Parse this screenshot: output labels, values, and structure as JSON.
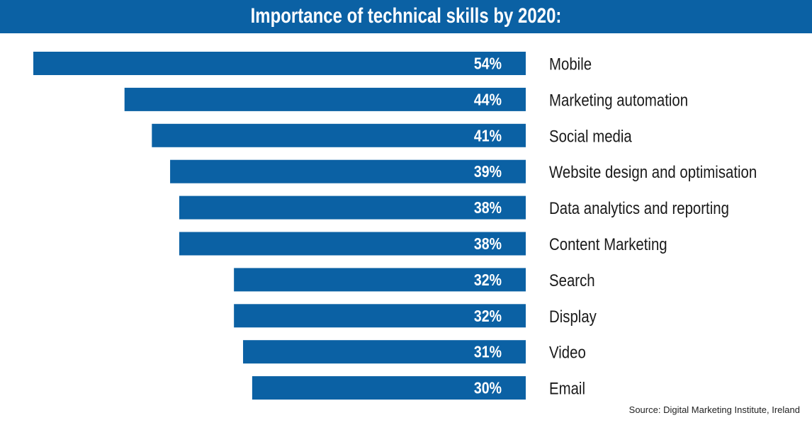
{
  "chart_data": {
    "type": "bar",
    "orientation": "horizontal",
    "title": "Importance of technical skills by 2020:",
    "categories": [
      "Mobile",
      "Marketing automation",
      "Social media",
      "Website design and optimisation",
      "Data analytics and reporting",
      "Content Marketing",
      "Search",
      "Display",
      "Video",
      "Email"
    ],
    "values": [
      54,
      44,
      41,
      39,
      38,
      38,
      32,
      32,
      31,
      30
    ],
    "value_labels": [
      "54%",
      "44%",
      "41%",
      "39%",
      "38%",
      "38%",
      "32%",
      "32%",
      "31%",
      "30%"
    ],
    "bar_color": "#0b61a4",
    "source": "Source: Digital Marketing Institute, Ireland"
  }
}
